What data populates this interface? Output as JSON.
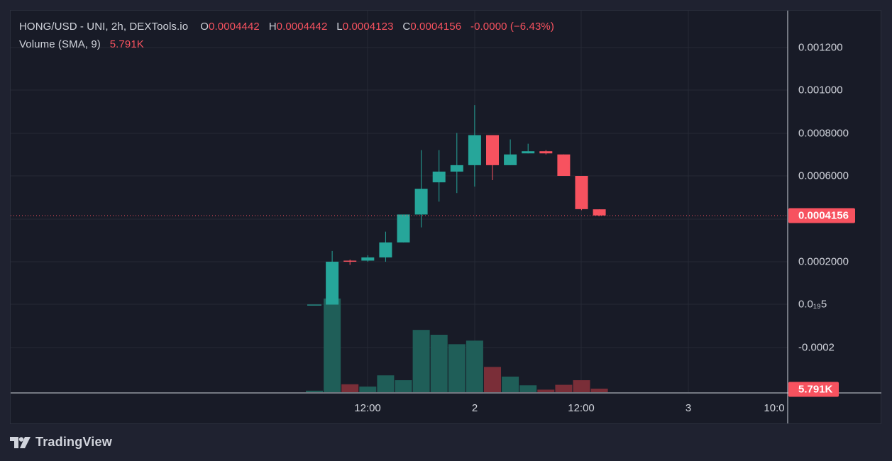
{
  "legend": {
    "symbol": "HONG/USD - UNI, 2h, DEXTools.io",
    "o_label": "O",
    "o_value": "0.0004442",
    "h_label": "H",
    "h_value": "0.0004442",
    "l_label": "L",
    "l_value": "0.0004123",
    "c_label": "C",
    "c_value": "0.0004156",
    "change": "-0.0000 (−6.43%)",
    "volume_label": "Volume (SMA, 9)",
    "volume_value": "5.791K"
  },
  "price_axis": {
    "ticks": [
      "0.001200",
      "0.001000",
      "0.0008000",
      "0.0006000",
      "0.0002000",
      "0.0₁₉5",
      "-0.0002"
    ],
    "last_price_badge": "0.0004156",
    "volume_badge": "5.791K"
  },
  "time_axis": {
    "labels": [
      "12:00",
      "2",
      "12:00",
      "3",
      "10:0"
    ]
  },
  "brand": {
    "name": "TradingView",
    "icon": "tradingview-logo-icon"
  },
  "colors": {
    "up": "#26a69a",
    "down": "#f7525f",
    "up_volume": "#1f5e58",
    "down_volume": "#7a2e38",
    "background": "#181b27",
    "grid": "#262a36",
    "text": "#d1d4dc"
  },
  "chart_data": {
    "type": "candlestick",
    "title": "HONG/USD - UNI, 2h, DEXTools.io",
    "y_axis_ticks": [
      0.0012,
      0.001,
      0.0008,
      0.0006,
      0.0002,
      -0.0002
    ],
    "last_price": 0.0004156,
    "candles": [
      {
        "o": 0.0,
        "h": 0.0,
        "l": 0.0,
        "c": 0.0
      },
      {
        "o": 0.0,
        "h": 0.00025,
        "l": 0.0,
        "c": 0.0002
      },
      {
        "o": 0.000205,
        "h": 0.00021,
        "l": 0.000185,
        "c": 0.0002
      },
      {
        "o": 0.000205,
        "h": 0.00023,
        "l": 0.0002,
        "c": 0.00022
      },
      {
        "o": 0.00022,
        "h": 0.00034,
        "l": 0.0002,
        "c": 0.00029
      },
      {
        "o": 0.00029,
        "h": 0.00042,
        "l": 0.00029,
        "c": 0.00042
      },
      {
        "o": 0.00042,
        "h": 0.00072,
        "l": 0.00036,
        "c": 0.00054
      },
      {
        "o": 0.00057,
        "h": 0.00072,
        "l": 0.00048,
        "c": 0.00062
      },
      {
        "o": 0.00062,
        "h": 0.0008,
        "l": 0.00052,
        "c": 0.00065
      },
      {
        "o": 0.00065,
        "h": 0.00093,
        "l": 0.00055,
        "c": 0.00079
      },
      {
        "o": 0.00079,
        "h": 0.00079,
        "l": 0.00058,
        "c": 0.00065
      },
      {
        "o": 0.00065,
        "h": 0.00077,
        "l": 0.00065,
        "c": 0.0007
      },
      {
        "o": 0.000705,
        "h": 0.00075,
        "l": 0.000705,
        "c": 0.000715
      },
      {
        "o": 0.000715,
        "h": 0.00072,
        "l": 0.0007,
        "c": 0.000705
      },
      {
        "o": 0.0007,
        "h": 0.0007,
        "l": 0.0006,
        "c": 0.0006
      },
      {
        "o": 0.0006,
        "h": 0.0006,
        "l": 0.00044,
        "c": 0.000445
      },
      {
        "o": 0.0004442,
        "h": 0.0004442,
        "l": 0.0004123,
        "c": 0.0004156
      }
    ],
    "volume": [
      {
        "v": 0.6,
        "dir": "up"
      },
      {
        "v": 36.7,
        "dir": "up"
      },
      {
        "v": 3.1,
        "dir": "down"
      },
      {
        "v": 2.2,
        "dir": "up"
      },
      {
        "v": 6.6,
        "dir": "up"
      },
      {
        "v": 4.7,
        "dir": "up"
      },
      {
        "v": 24.4,
        "dir": "up"
      },
      {
        "v": 22.5,
        "dir": "up"
      },
      {
        "v": 18.8,
        "dir": "up"
      },
      {
        "v": 20.2,
        "dir": "up"
      },
      {
        "v": 9.9,
        "dir": "down"
      },
      {
        "v": 6.1,
        "dir": "up"
      },
      {
        "v": 2.7,
        "dir": "up"
      },
      {
        "v": 1.0,
        "dir": "down"
      },
      {
        "v": 2.9,
        "dir": "down"
      },
      {
        "v": 4.7,
        "dir": "down"
      },
      {
        "v": 1.4,
        "dir": "down"
      }
    ]
  }
}
